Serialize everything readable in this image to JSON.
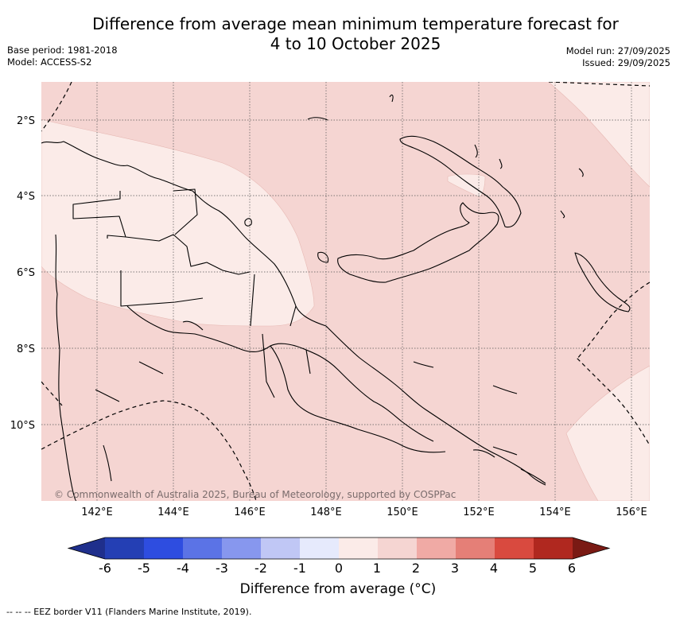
{
  "title_line1": "Difference from average mean minimum temperature forecast for",
  "title_line2": "4 to 10 October 2025",
  "base_period": "Base period: 1981-2018",
  "model": "Model: ACCESS-S2",
  "model_run": "Model run: 27/09/2025",
  "issued": "Issued: 29/09/2025",
  "credit": "© Commonwealth of Australia 2025, Bureau of Meteorology, supported by COSPPac",
  "lon_labels": [
    "142°E",
    "144°E",
    "146°E",
    "148°E",
    "150°E",
    "152°E",
    "154°E",
    "156°E"
  ],
  "lat_labels": [
    "2°S",
    "4°S",
    "6°S",
    "8°S",
    "10°S"
  ],
  "colorbar": {
    "title": "Difference from average (°C)",
    "tick_labels": [
      "-6",
      "-5",
      "-4",
      "-3",
      "-2",
      "-1",
      "0",
      "1",
      "2",
      "3",
      "4",
      "5",
      "6"
    ],
    "colors": [
      "#1f2f8c",
      "#243fb4",
      "#2e4de0",
      "#5b73e6",
      "#8797ee",
      "#c0c7f5",
      "#e6eafc",
      "#fbebe8",
      "#f5d5d2",
      "#f0aaa5",
      "#e57f77",
      "#d94a3f",
      "#b0281f",
      "#7a1a14"
    ]
  },
  "map": {
    "background_color": "#f5d5d2",
    "light_color": "#fbebe8"
  },
  "footnote": "--  --  -- EEZ border V11 (Flanders Marine Institute, 2019)."
}
